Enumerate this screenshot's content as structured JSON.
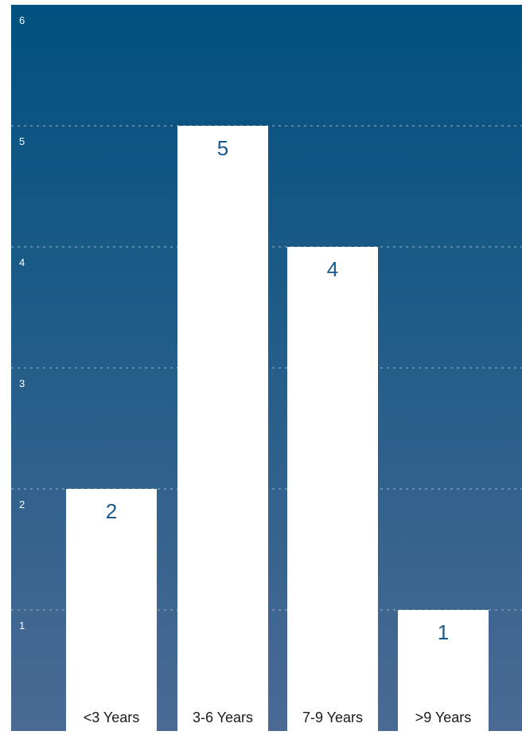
{
  "chart_data": {
    "type": "bar",
    "categories": [
      "<3 Years",
      "3-6 Years",
      "7-9 Years",
      ">9 Years"
    ],
    "values": [
      2,
      5,
      4,
      1
    ],
    "y_ticks": [
      "1",
      "2",
      "3",
      "4",
      "5",
      "6"
    ],
    "ylim": [
      0,
      6
    ],
    "grid": true,
    "legend": "none"
  },
  "colors": {
    "gradient_top": "#00517f",
    "gradient_bottom": "#4a6a94",
    "bar_fill": "#ffffff",
    "value_label": "#1a5a8c",
    "tick_label": "#ffffff",
    "category_label": "#1a1a1a",
    "grid_line": "#9fb6cc"
  }
}
